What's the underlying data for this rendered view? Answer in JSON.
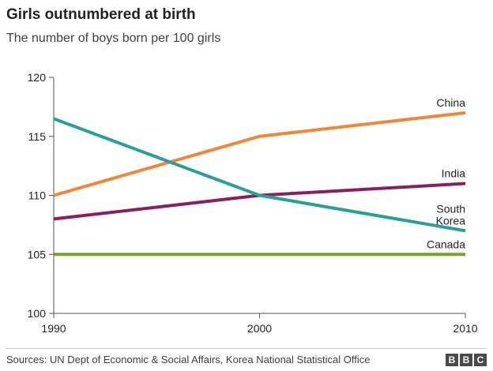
{
  "chart_data": {
    "type": "line",
    "title": "Girls outnumbered at birth",
    "subtitle": "The number of boys born per 100 girls",
    "x": [
      1990,
      2000,
      2010
    ],
    "xlim": [
      1990,
      2010
    ],
    "ylim": [
      100,
      120
    ],
    "y_ticks": [
      "100",
      "105",
      "110",
      "115",
      "120"
    ],
    "x_ticks": [
      "1990",
      "2000",
      "2010"
    ],
    "grid": false,
    "series": [
      {
        "name": "China",
        "label_lines": [
          "China"
        ],
        "values": [
          110,
          115,
          117
        ],
        "color": "#f58536"
      },
      {
        "name": "India",
        "label_lines": [
          "India"
        ],
        "values": [
          108,
          110,
          111
        ],
        "color": "#8a1e61"
      },
      {
        "name": "South Korea",
        "label_lines": [
          "South",
          "Korea"
        ],
        "values": [
          116.5,
          110,
          107
        ],
        "color": "#27a09b"
      },
      {
        "name": "Canada",
        "label_lines": [
          "Canada"
        ],
        "values": [
          105,
          105,
          105
        ],
        "color": "#77a02d"
      }
    ]
  },
  "source": "Sources: UN Dept of Economic & Social Affairs, Korea National Statistical Office",
  "logo": [
    "B",
    "B",
    "C"
  ]
}
